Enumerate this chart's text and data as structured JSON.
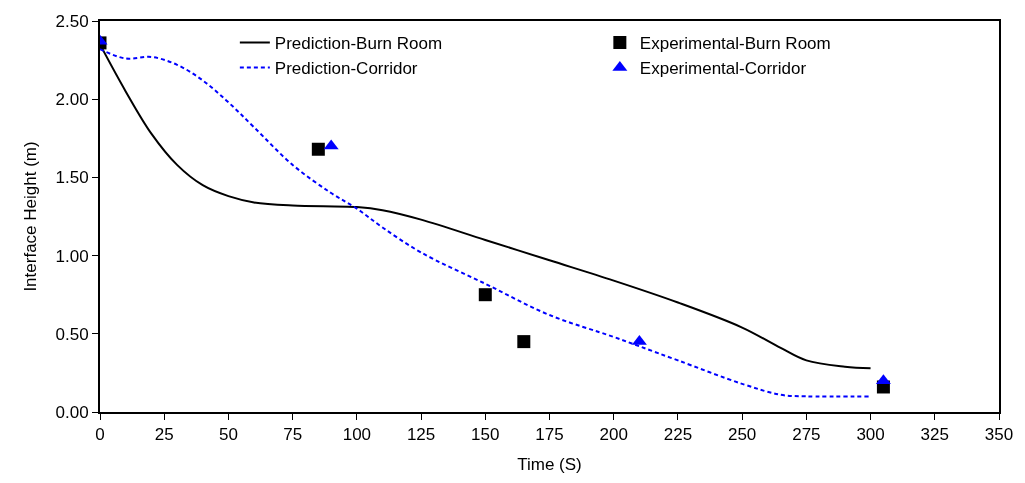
{
  "chart_data": {
    "type": "line",
    "xlabel": "Time (S)",
    "ylabel": "Interface Height (m)",
    "xlim": [
      0,
      350
    ],
    "xticks": [
      0,
      25,
      50,
      75,
      100,
      125,
      150,
      175,
      200,
      225,
      250,
      275,
      300,
      325,
      350
    ],
    "ylim": [
      0,
      2.5
    ],
    "yticks": [
      {
        "value": 0,
        "label": "0.00"
      },
      {
        "value": 0.5,
        "label": "0.50"
      },
      {
        "value": 1,
        "label": "1.00"
      },
      {
        "value": 1.5,
        "label": "1.50"
      },
      {
        "value": 2,
        "label": "2.00"
      },
      {
        "value": 2.5,
        "label": "2.50"
      }
    ],
    "legend": "top",
    "series": [
      {
        "name": "Prediction-Burn Room",
        "color": "#000000",
        "line_style": "solid",
        "marker": "none",
        "x": [
          0,
          10,
          20,
          30,
          40,
          50,
          60,
          75,
          100,
          110,
          125,
          150,
          175,
          200,
          225,
          250,
          265,
          275,
          290,
          300
        ],
        "values": [
          2.35,
          2.05,
          1.78,
          1.58,
          1.45,
          1.38,
          1.34,
          1.32,
          1.31,
          1.29,
          1.23,
          1.1,
          0.97,
          0.84,
          0.7,
          0.54,
          0.41,
          0.33,
          0.29,
          0.28
        ]
      },
      {
        "name": "Experimental-Burn Room",
        "type": "scatter",
        "color": "#000000",
        "marker": "square",
        "x": [
          0,
          85,
          150,
          165,
          305
        ],
        "values": [
          2.36,
          1.68,
          0.75,
          0.45,
          0.16
        ]
      },
      {
        "name": "Prediction-Corridor",
        "color": "#0000ff",
        "line_style": "dashed",
        "marker": "none",
        "x": [
          0,
          10,
          20,
          30,
          40,
          50,
          60,
          75,
          90,
          100,
          110,
          125,
          150,
          175,
          200,
          210,
          225,
          250,
          265,
          275,
          300
        ],
        "values": [
          2.32,
          2.26,
          2.27,
          2.22,
          2.12,
          1.98,
          1.82,
          1.58,
          1.4,
          1.3,
          1.18,
          1.02,
          0.82,
          0.62,
          0.48,
          0.42,
          0.33,
          0.18,
          0.11,
          0.1,
          0.1
        ]
      },
      {
        "name": "Experimental-Corridor",
        "type": "scatter",
        "color": "#0000ff",
        "marker": "triangle",
        "x": [
          0,
          90,
          210,
          305
        ],
        "values": [
          2.37,
          1.7,
          0.45,
          0.2
        ]
      }
    ]
  }
}
